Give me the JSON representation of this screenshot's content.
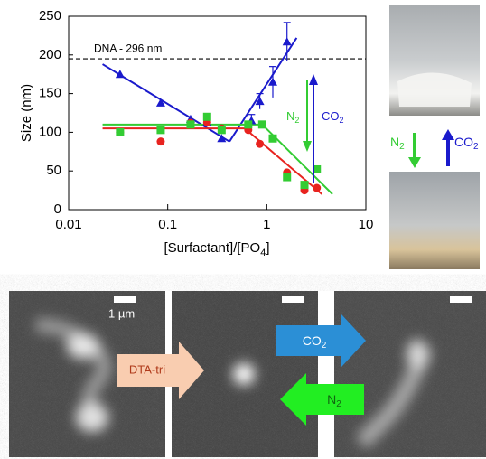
{
  "chart_data": {
    "type": "scatter",
    "ylabel": "Size (nm)",
    "xlabel_parts": [
      "[Surfactant]/[PO",
      "4",
      "]"
    ],
    "xscale": "log",
    "xlim": [
      0.01,
      10
    ],
    "xticks": [
      0.01,
      0.1,
      1,
      10
    ],
    "ylim": [
      0,
      250
    ],
    "yticks": [
      0,
      50,
      100,
      150,
      200,
      250
    ],
    "series": [
      {
        "color": "#1a1acc",
        "marker": "triangle",
        "x": [
          0.033,
          0.085,
          0.17,
          0.25,
          0.35,
          0.7,
          0.85,
          1.15,
          1.6
        ],
        "values": [
          175,
          138,
          117,
          113,
          92,
          115,
          140,
          165,
          217
        ],
        "errors": [
          null,
          null,
          null,
          null,
          null,
          8,
          10,
          20,
          25
        ]
      },
      {
        "color": "#e8231f",
        "marker": "circle",
        "x": [
          0.033,
          0.085,
          0.17,
          0.25,
          0.35,
          0.65,
          0.85,
          1.6,
          2.4,
          3.2
        ],
        "values": [
          100,
          88,
          112,
          113,
          105,
          103,
          85,
          48,
          25,
          28
        ]
      },
      {
        "color": "#33cc33",
        "marker": "square",
        "x": [
          0.033,
          0.085,
          0.17,
          0.25,
          0.35,
          0.65,
          0.9,
          1.15,
          1.6,
          2.4,
          3.2
        ],
        "values": [
          100,
          103,
          110,
          120,
          103,
          110,
          110,
          92,
          42,
          32,
          52
        ]
      }
    ],
    "fits": [
      {
        "color": "#1a1acc",
        "x": [
          0.022,
          0.42
        ],
        "values": [
          188,
          88
        ]
      },
      {
        "color": "#1a1acc",
        "x": [
          0.42,
          2.0
        ],
        "values": [
          88,
          222
        ]
      },
      {
        "color": "#e8231f",
        "x": [
          0.022,
          0.6,
          3.6
        ],
        "values": [
          105,
          105,
          20
        ]
      },
      {
        "color": "#33cc33",
        "x": [
          0.022,
          0.9,
          4.6
        ],
        "values": [
          110,
          110,
          20
        ]
      }
    ],
    "reference_line": {
      "value": 195,
      "label": "DNA - 296 nm"
    },
    "gas_labels": [
      {
        "text": "N",
        "sub": "2"
      },
      {
        "text": "CO",
        "sub": "2"
      }
    ]
  },
  "photos": {
    "gas_labels": [
      {
        "text": "N",
        "sub": "2"
      },
      {
        "text": "CO",
        "sub": "2"
      }
    ]
  },
  "microscopy": {
    "scale_label": "1 µm",
    "surfactant_label": "DTA-tri",
    "gas_labels": [
      {
        "text": "CO",
        "sub": "2"
      },
      {
        "text": "N",
        "sub": "2"
      }
    ]
  }
}
